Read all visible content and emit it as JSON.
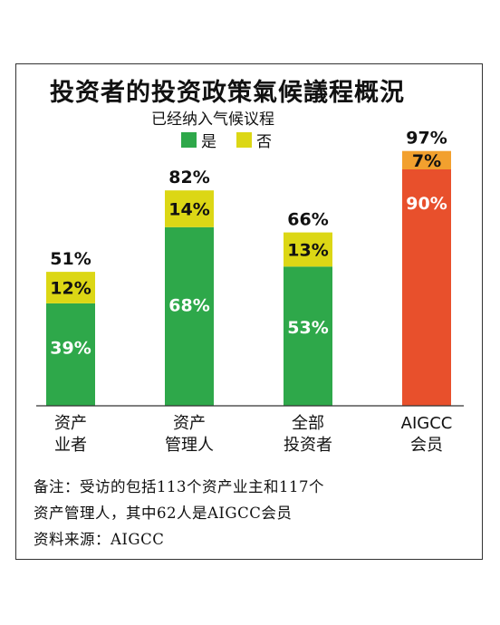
{
  "chart_data": {
    "type": "bar",
    "stacked": true,
    "title": "投资者的投资政策氣候議程概況",
    "subtitle": "已经纳入气候议程",
    "legend_position": "top",
    "categories": [
      [
        "资产",
        "业者"
      ],
      [
        "资产",
        "管理人"
      ],
      [
        "全部",
        "投资者"
      ],
      [
        "AIGCC",
        "会员"
      ]
    ],
    "totals": [
      "51%",
      "82%",
      "66%",
      "97%"
    ],
    "series": [
      {
        "name": "是",
        "values": [
          39,
          68,
          53,
          90
        ],
        "labels": [
          "39%",
          "68%",
          "53%",
          "90%"
        ]
      },
      {
        "name": "否",
        "values": [
          12,
          14,
          13,
          7
        ],
        "labels": [
          "12%",
          "14%",
          "13%",
          "7%"
        ]
      }
    ],
    "ylim": [
      0,
      100
    ],
    "grid": false
  },
  "colors": {
    "yes": "#2ea84a",
    "no": "#dcd715",
    "aigcc_yes": "#e8502c",
    "aigcc_no": "#f2a02e"
  },
  "notes": {
    "line1": "备注：受访的包括113个资产业主和117个",
    "line2": "资产管理人，其中62人是AIGCC会员",
    "source": "资料来源：AIGCC"
  }
}
